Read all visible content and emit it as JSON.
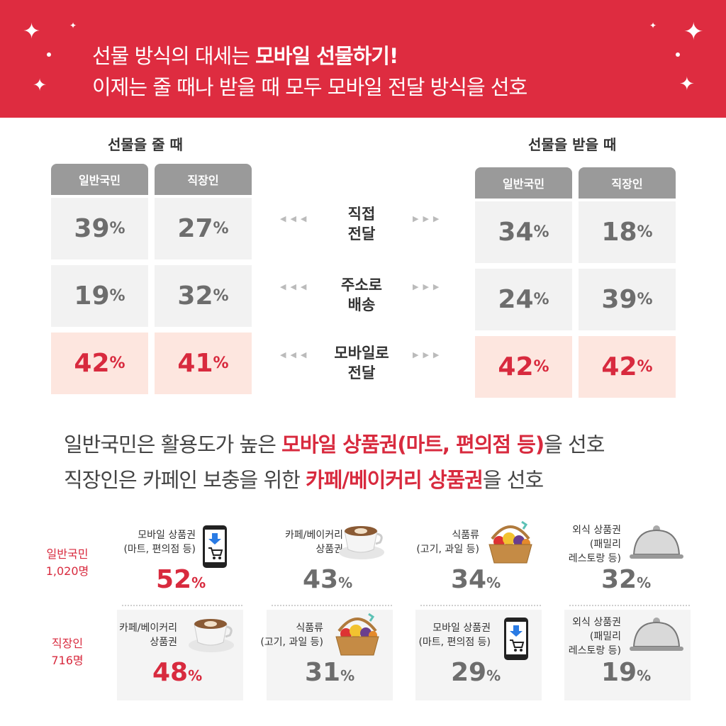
{
  "banner": {
    "line1_prefix": "선물 방식의 대세는 ",
    "line1_bold": "모바일 선물하기!",
    "line2": "이제는 줄 때나 받을 때 모두 모바일 전달 방식을 선호"
  },
  "giving": {
    "title": "선물을 줄 때",
    "columns": [
      "일반국민",
      "직장인"
    ],
    "rows": [
      [
        "39",
        "27"
      ],
      [
        "19",
        "32"
      ],
      [
        "42",
        "41"
      ]
    ]
  },
  "receiving": {
    "title": "선물을 받을 때",
    "columns": [
      "일반국민",
      "직장인"
    ],
    "rows": [
      [
        "34",
        "18"
      ],
      [
        "24",
        "39"
      ],
      [
        "42",
        "42"
      ]
    ]
  },
  "methods": [
    {
      "line1": "직접",
      "line2": "전달"
    },
    {
      "line1": "주소로",
      "line2": "배송"
    },
    {
      "line1": "모바일로",
      "line2": "전달"
    }
  ],
  "percent_sign": "%",
  "summary": {
    "line1": {
      "pre": "일반국민은 활용도가 높은 ",
      "em": "모바일 상품권(마트, 편의점 등)",
      "post": "을 선호"
    },
    "line2": {
      "pre": "직장인은 카페인 보충을 위한 ",
      "em": "카페/베이커리 상품권",
      "post": "을 선호"
    }
  },
  "general": {
    "label_line1": "일반국민",
    "label_line2": "1,020명",
    "items": [
      {
        "line1": "모바일 상품권",
        "line2": "(마트, 편의점 등)",
        "line3": "",
        "value": "52",
        "icon": "phone-cart-icon"
      },
      {
        "line1": "카페/베이커리",
        "line2": "상품권",
        "line3": "",
        "value": "43",
        "icon": "coffee-cup-icon"
      },
      {
        "line1": "식품류",
        "line2": "(고기, 과일 등)",
        "line3": "",
        "value": "34",
        "icon": "fruit-basket-icon"
      },
      {
        "line1": "외식 상품권",
        "line2": "(패밀리",
        "line3": "레스토랑 등)",
        "value": "32",
        "icon": "cloche-icon"
      }
    ]
  },
  "office": {
    "label_line1": "직장인",
    "label_line2": "716명",
    "items": [
      {
        "line1": "카페/베이커리",
        "line2": "상품권",
        "line3": "",
        "value": "48",
        "icon": "coffee-cup-icon"
      },
      {
        "line1": "식품류",
        "line2": "(고기, 과일 등)",
        "line3": "",
        "value": "31",
        "icon": "fruit-basket-icon"
      },
      {
        "line1": "모바일 상품권",
        "line2": "(마트, 편의점 등)",
        "line3": "",
        "value": "29",
        "icon": "phone-cart-icon"
      },
      {
        "line1": "외식 상품권",
        "line2": "(패밀리",
        "line3": "레스토랑 등)",
        "value": "19",
        "icon": "cloche-icon"
      }
    ]
  },
  "colors": {
    "accent": "#d82a3e",
    "banner": "#de2c40",
    "highlight_cell": "#fde6df",
    "header_gray": "#9a9a9a"
  }
}
